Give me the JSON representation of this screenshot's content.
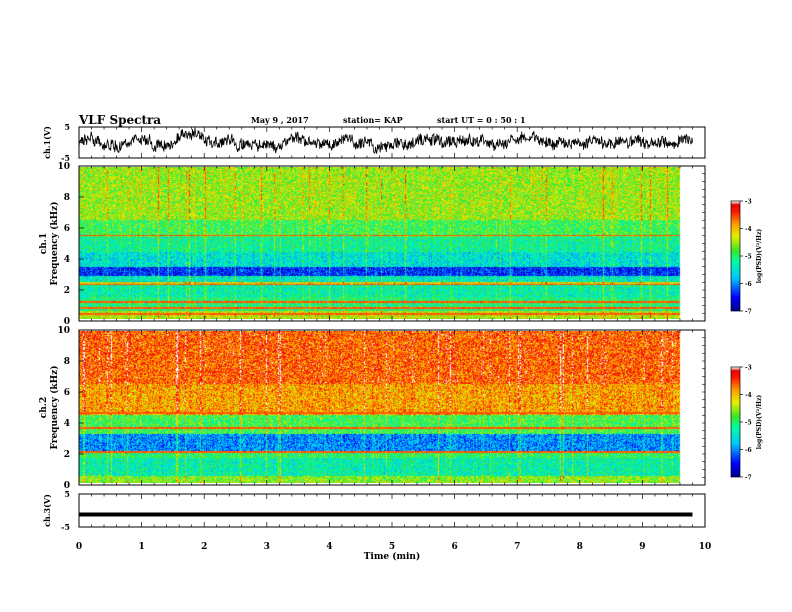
{
  "header": {
    "title": "VLF Spectra",
    "date": "May 9  , 2017",
    "station": "station= KAP",
    "start_ut": "start  UT =   0  : 50 : 1"
  },
  "chart_data": [
    {
      "id": "ch1_waveform",
      "type": "line",
      "ylabel": "ch.1(V)",
      "ylim": [
        -5,
        5
      ],
      "yticks": [
        "5",
        "-5"
      ],
      "xlim": [
        0,
        10
      ],
      "series": [
        {
          "color": "#000000",
          "description_values_mean": 0,
          "amplitude": 2.2,
          "xmax": 9.8
        }
      ]
    },
    {
      "id": "ch1_spectrogram",
      "type": "heatmap",
      "ylabel": "ch.1\nFrequency (kHz)",
      "ylabel_line1": "ch.1",
      "ylabel_line2": "Frequency (kHz)",
      "ylim": [
        0,
        10
      ],
      "yticks": [
        "0",
        "2",
        "4",
        "6",
        "8",
        "10"
      ],
      "xlim": [
        0,
        10
      ],
      "data_xmax": 9.8,
      "colorbar": {
        "label": "log(PSD)(V²/Hz)",
        "ticks": [
          "-3",
          "-4",
          "-5",
          "-6",
          "-7"
        ],
        "range": [
          -7,
          -3
        ]
      },
      "bands": [
        {
          "from": 0.0,
          "to": 0.5,
          "level": -4.4
        },
        {
          "from": 0.5,
          "to": 1.4,
          "level": -5.1
        },
        {
          "from": 1.4,
          "to": 2.2,
          "level": -5.3
        },
        {
          "from": 2.2,
          "to": 2.4,
          "level": -4.2
        },
        {
          "from": 2.4,
          "to": 2.8,
          "level": -5.4
        },
        {
          "from": 2.8,
          "to": 3.4,
          "level": -6.4
        },
        {
          "from": 3.4,
          "to": 4.4,
          "level": -5.5
        },
        {
          "from": 4.4,
          "to": 5.4,
          "level": -5.2
        },
        {
          "from": 5.4,
          "to": 6.5,
          "level": -4.9
        },
        {
          "from": 6.5,
          "to": 10.0,
          "level": -4.5
        }
      ],
      "lines_khz": [
        0.3,
        0.7,
        1.1,
        2.25,
        5.5
      ]
    },
    {
      "id": "ch2_spectrogram",
      "type": "heatmap",
      "ylabel": "ch.2\nFrequency (kHz)",
      "ylabel_line1": "ch.2",
      "ylabel_line2": "Frequency (kHz)",
      "ylim": [
        0,
        10
      ],
      "yticks": [
        "0",
        "2",
        "4",
        "6",
        "8",
        "10"
      ],
      "xlim": [
        0,
        10
      ],
      "data_xmax": 9.8,
      "colorbar": {
        "label": "log(PSD)(V²/Hz)",
        "ticks": [
          "-3",
          "-4",
          "-5",
          "-6",
          "-7"
        ],
        "range": [
          -7,
          -3
        ]
      },
      "bands": [
        {
          "from": 0.0,
          "to": 0.4,
          "level": -4.6
        },
        {
          "from": 0.4,
          "to": 1.6,
          "level": -5.3
        },
        {
          "from": 1.6,
          "to": 2.0,
          "level": -5.0
        },
        {
          "from": 2.0,
          "to": 3.2,
          "level": -6.0
        },
        {
          "from": 3.2,
          "to": 4.5,
          "level": -4.9
        },
        {
          "from": 4.5,
          "to": 6.5,
          "level": -3.9
        },
        {
          "from": 6.5,
          "to": 10.0,
          "level": -3.6
        }
      ],
      "lines_khz": [
        2.0,
        3.6,
        4.6
      ]
    },
    {
      "id": "ch3_waveform",
      "type": "line",
      "ylabel": "ch.3(V)",
      "ylim": [
        -5,
        5
      ],
      "yticks": [
        "5",
        "-5"
      ],
      "xlim": [
        0,
        10
      ],
      "xlabel": "Time  (min)",
      "xticks": [
        "0",
        "1",
        "2",
        "3",
        "4",
        "5",
        "6",
        "7",
        "8",
        "9",
        "10"
      ],
      "series": [
        {
          "color": "#000000",
          "value": -1.2,
          "xmax": 9.8
        }
      ]
    }
  ]
}
